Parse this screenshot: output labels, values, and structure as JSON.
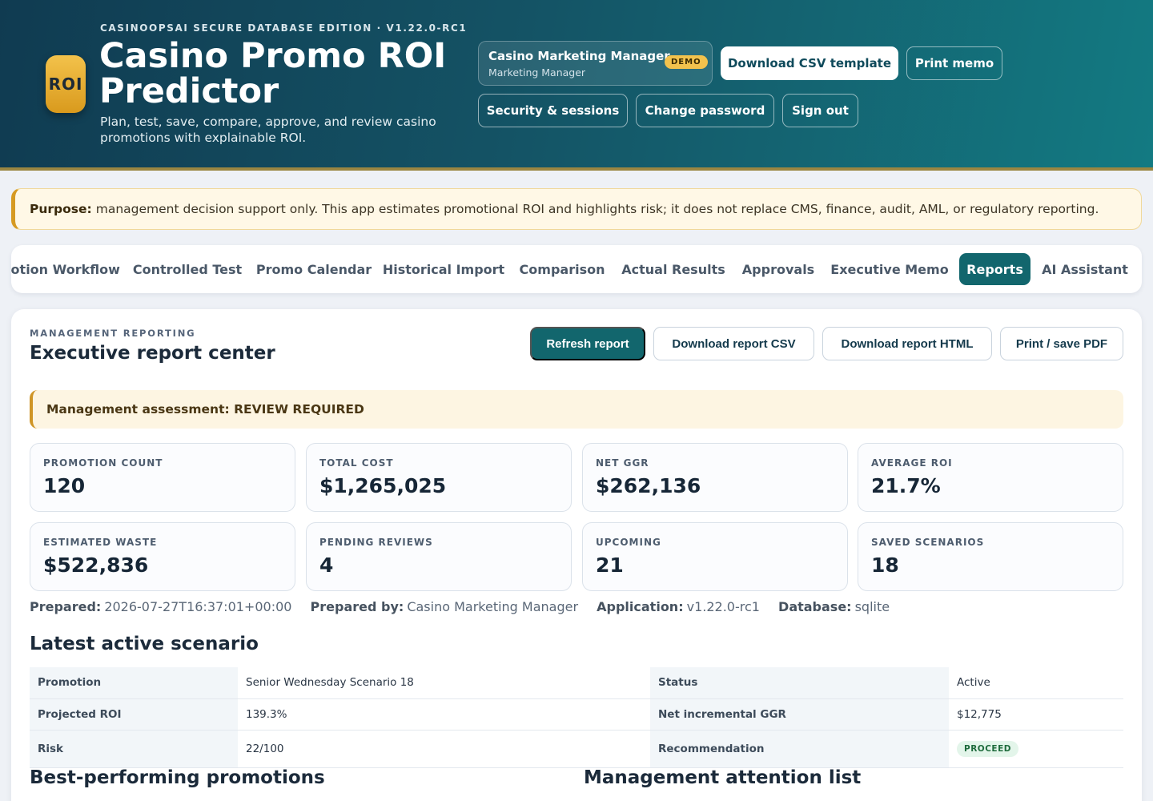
{
  "header": {
    "edition": "CASINOOPSAI SECURE DATABASE EDITION · V1.22.0-RC1",
    "logo_text": "ROI",
    "title": "Casino Promo ROI Predictor",
    "tagline": "Plan, test, save, compare, approve, and review casino promotions with explainable ROI.",
    "user_name": "Casino Marketing Manager",
    "user_role": "Marketing Manager",
    "demo_badge": "DEMO",
    "buttons": {
      "download_csv_template": "Download CSV template",
      "print_memo": "Print memo",
      "security_sessions": "Security & sessions",
      "change_password": "Change password",
      "sign_out": "Sign out"
    }
  },
  "purpose": {
    "label": "Purpose:",
    "text": "management decision support only. This app estimates promotional ROI and highlights risk; it does not replace CMS, finance, audit, AML, or regulatory reporting."
  },
  "tabs": [
    "notion Workflow",
    "Controlled Test",
    "Promo Calendar",
    "Historical Import",
    "Comparison",
    "Actual Results",
    "Approvals",
    "Executive Memo",
    "Reports",
    "AI Assistant"
  ],
  "active_tab": "Reports",
  "report": {
    "kicker": "MANAGEMENT REPORTING",
    "title": "Executive report center",
    "buttons": {
      "refresh": "Refresh report",
      "download_csv": "Download report CSV",
      "download_html": "Download report HTML",
      "print_pdf": "Print / save PDF"
    },
    "assessment": "Management assessment: REVIEW REQUIRED",
    "stats": [
      {
        "label": "PROMOTION COUNT",
        "value": "120"
      },
      {
        "label": "TOTAL COST",
        "value": "$1,265,025"
      },
      {
        "label": "NET GGR",
        "value": "$262,136"
      },
      {
        "label": "AVERAGE ROI",
        "value": "21.7%"
      },
      {
        "label": "ESTIMATED WASTE",
        "value": "$522,836"
      },
      {
        "label": "PENDING REVIEWS",
        "value": "4"
      },
      {
        "label": "UPCOMING",
        "value": "21"
      },
      {
        "label": "SAVED SCENARIOS",
        "value": "18"
      }
    ],
    "meta": {
      "prepared_label": "Prepared:",
      "prepared": "2026-07-27T16:37:01+00:00",
      "prepared_by_label": "Prepared by:",
      "prepared_by": "Casino Marketing Manager",
      "application_label": "Application:",
      "application": "v1.22.0-rc1",
      "database_label": "Database:",
      "database": "sqlite"
    },
    "latest_title": "Latest active scenario",
    "latest": {
      "promotion_label": "Promotion",
      "promotion": "Senior Wednesday Scenario 18",
      "status_label": "Status",
      "status": "Active",
      "projected_roi_label": "Projected ROI",
      "projected_roi": "139.3%",
      "net_ggr_label": "Net incremental GGR",
      "net_ggr": "$12,775",
      "risk_label": "Risk",
      "risk": "22/100",
      "recommendation_label": "Recommendation",
      "recommendation": "PROCEED"
    },
    "best_title": "Best-performing promotions",
    "attention_title": "Management attention list"
  }
}
